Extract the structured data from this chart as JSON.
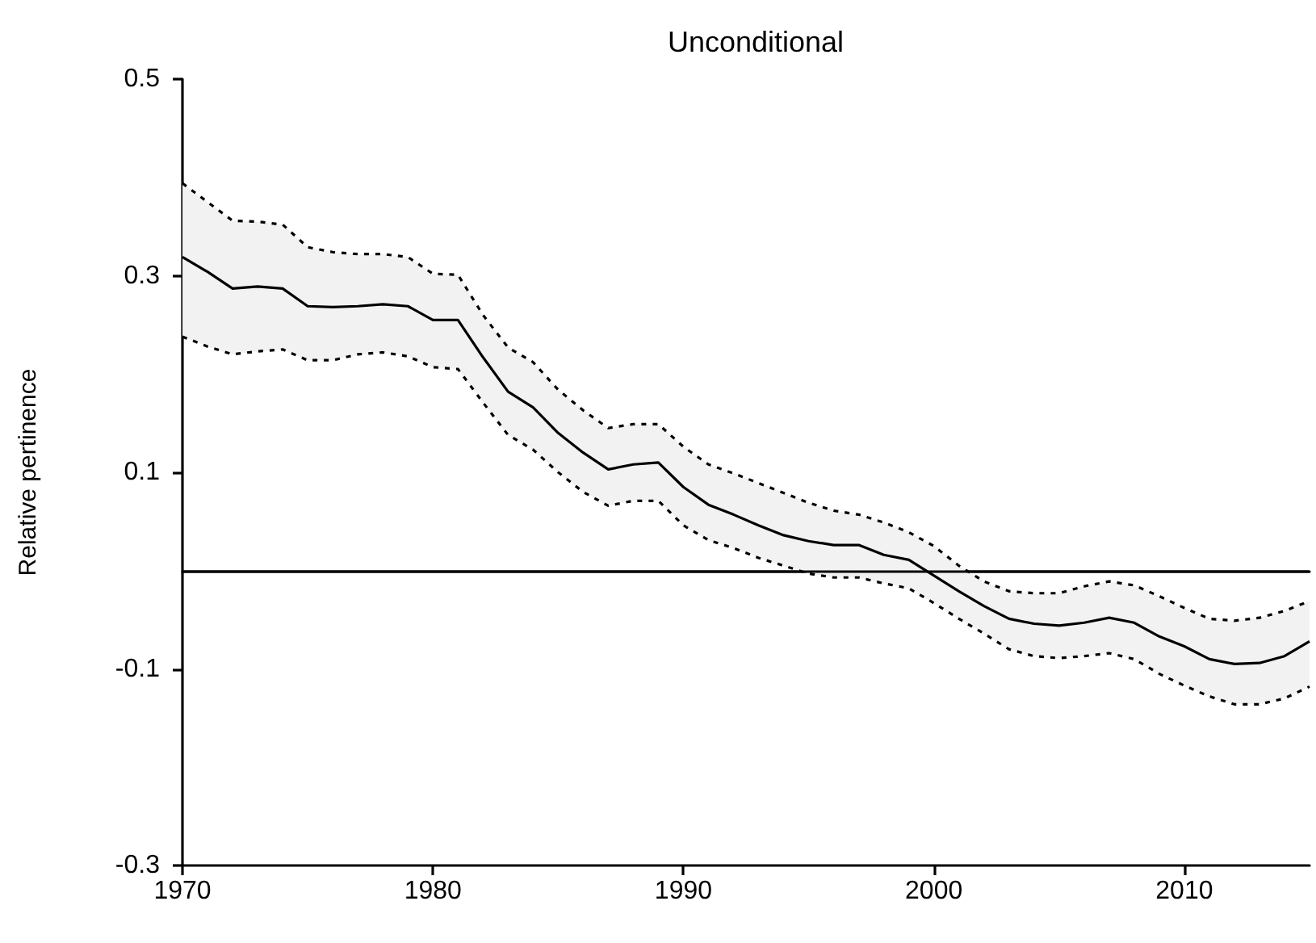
{
  "chart_data": {
    "type": "line",
    "title": "Unconditional",
    "ylabel": "Relative pertinence",
    "x": [
      1970,
      1971,
      1972,
      1973,
      1974,
      1975,
      1976,
      1977,
      1978,
      1979,
      1980,
      1981,
      1982,
      1983,
      1984,
      1985,
      1986,
      1987,
      1988,
      1989,
      1990,
      1991,
      1992,
      1993,
      1994,
      1995,
      1996,
      1997,
      1998,
      1999,
      2000,
      2001,
      2002,
      2003,
      2004,
      2005,
      2006,
      2007,
      2008,
      2009,
      2010,
      2011,
      2012,
      2013,
      2014,
      2015
    ],
    "series": [
      {
        "color": "#000000",
        "values": [
          0.319,
          0.304,
          0.287,
          0.289,
          0.287,
          0.269,
          0.268,
          0.269,
          0.271,
          0.269,
          0.255,
          0.255,
          0.217,
          0.182,
          0.166,
          0.14,
          0.12,
          0.103,
          0.108,
          0.11,
          0.085,
          0.067,
          0.057,
          0.046,
          0.036,
          0.03,
          0.026,
          0.026,
          0.016,
          0.011,
          -0.005,
          -0.021,
          -0.036,
          -0.049,
          -0.054,
          -0.056,
          -0.053,
          -0.048,
          -0.053,
          -0.067,
          -0.077,
          -0.09,
          -0.095,
          -0.094,
          -0.087,
          -0.072
        ],
        "upper": [
          0.394,
          0.375,
          0.356,
          0.355,
          0.352,
          0.329,
          0.324,
          0.322,
          0.322,
          0.319,
          0.302,
          0.301,
          0.26,
          0.227,
          0.212,
          0.184,
          0.163,
          0.145,
          0.149,
          0.149,
          0.126,
          0.108,
          0.099,
          0.089,
          0.079,
          0.069,
          0.061,
          0.057,
          0.049,
          0.039,
          0.025,
          0.005,
          -0.011,
          -0.021,
          -0.023,
          -0.023,
          -0.016,
          -0.011,
          -0.015,
          -0.026,
          -0.038,
          -0.049,
          -0.051,
          -0.048,
          -0.041,
          -0.031
        ],
        "lower": [
          0.238,
          0.228,
          0.22,
          0.223,
          0.225,
          0.214,
          0.214,
          0.22,
          0.222,
          0.218,
          0.207,
          0.205,
          0.171,
          0.138,
          0.123,
          0.1,
          0.08,
          0.066,
          0.071,
          0.071,
          0.046,
          0.031,
          0.023,
          0.013,
          0.005,
          -0.003,
          -0.007,
          -0.007,
          -0.013,
          -0.018,
          -0.033,
          -0.049,
          -0.064,
          -0.08,
          -0.087,
          -0.089,
          -0.087,
          -0.084,
          -0.09,
          -0.105,
          -0.117,
          -0.128,
          -0.136,
          -0.136,
          -0.13,
          -0.118
        ]
      },
      {
        "color": "#000000",
        "line_style": "dotted",
        "values": [
          0.394,
          0.375,
          0.356,
          0.355,
          0.352,
          0.329,
          0.324,
          0.322,
          0.322,
          0.319,
          0.302,
          0.301,
          0.26,
          0.227,
          0.212,
          0.184,
          0.163,
          0.145,
          0.149,
          0.149,
          0.126,
          0.108,
          0.099,
          0.089,
          0.079,
          0.069,
          0.061,
          0.057,
          0.049,
          0.039,
          0.025,
          0.005,
          -0.011,
          -0.021,
          -0.023,
          -0.023,
          -0.016,
          -0.011,
          -0.015,
          -0.026,
          -0.038,
          -0.049,
          -0.051,
          -0.048,
          -0.041,
          -0.031
        ]
      },
      {
        "color": "#000000",
        "line_style": "dotted",
        "values": [
          0.238,
          0.228,
          0.22,
          0.223,
          0.225,
          0.214,
          0.214,
          0.22,
          0.222,
          0.218,
          0.207,
          0.205,
          0.171,
          0.138,
          0.123,
          0.1,
          0.08,
          0.066,
          0.071,
          0.071,
          0.046,
          0.031,
          0.023,
          0.013,
          0.005,
          -0.003,
          -0.007,
          -0.007,
          -0.013,
          -0.018,
          -0.033,
          -0.049,
          -0.064,
          -0.08,
          -0.087,
          -0.089,
          -0.087,
          -0.084,
          -0.09,
          -0.105,
          -0.117,
          -0.128,
          -0.136,
          -0.136,
          -0.13,
          -0.118
        ]
      }
    ],
    "xlim": [
      1970,
      2015
    ],
    "xticks": [
      1970,
      1980,
      1990,
      2000,
      2010
    ],
    "ylim": [
      -0.3,
      0.5
    ],
    "yticks": [
      -0.3,
      -0.1,
      0.1,
      0.3,
      0.5
    ],
    "ref_lines": [
      {
        "axis": "y",
        "value": 0,
        "color": "#000000",
        "line_style": "solid"
      }
    ],
    "grid": false,
    "marker": "none",
    "line_style": "solid"
  }
}
